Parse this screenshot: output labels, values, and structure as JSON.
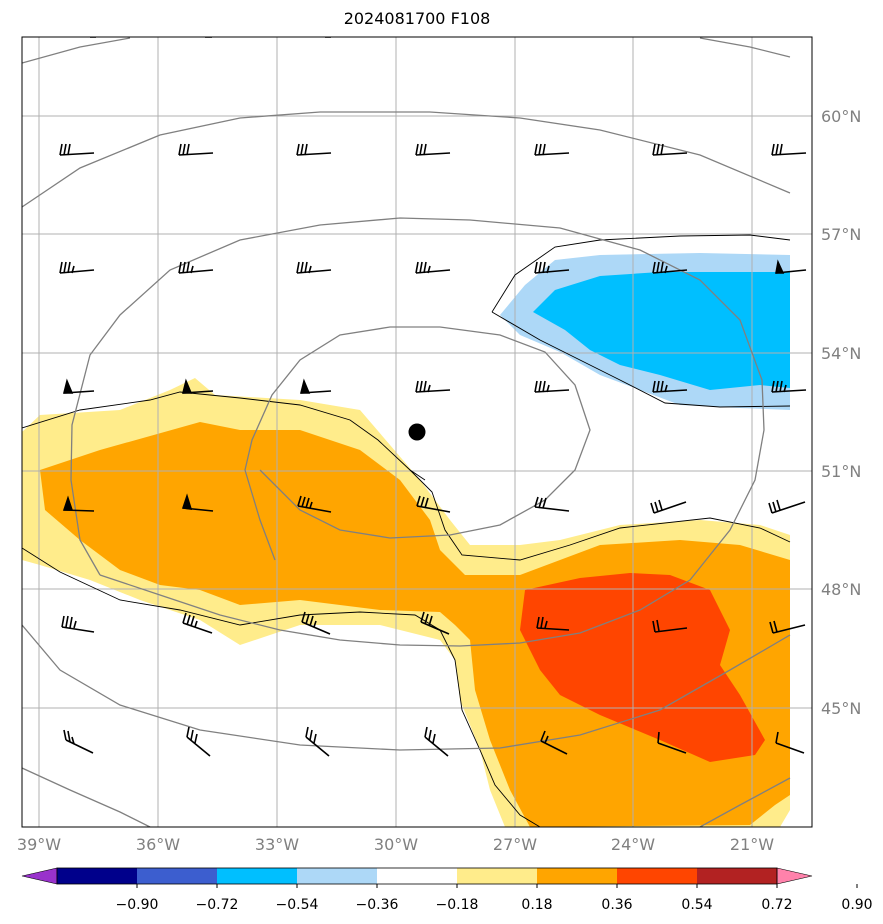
{
  "title": "2024081700 F108",
  "lon_labels": [
    "39°W",
    "36°W",
    "33°W",
    "30°W",
    "27°W",
    "24°W",
    "21°W"
  ],
  "lat_labels": [
    "60°N",
    "57°N",
    "54°N",
    "51°N",
    "48°N",
    "45°N"
  ],
  "colorbar": {
    "levels": [
      "−0.90",
      "−0.72",
      "−0.54",
      "−0.36",
      "−0.18",
      "0.18",
      "0.36",
      "0.54",
      "0.72",
      "0.90"
    ],
    "colors": [
      "#9932cc",
      "#00008b",
      "#3c5ecf",
      "#00bfff",
      "#add8f7",
      "#ffffff",
      "#ffec8b",
      "#ffa500",
      "#ff4500",
      "#b22222",
      "#ff82ab"
    ]
  },
  "fill_colors": {
    "light_yellow": "#ffec8b",
    "orange": "#ffa500",
    "red_orange": "#ff4500",
    "light_blue": "#add8f7",
    "deep_sky_blue": "#00bfff"
  },
  "contour_color": "#808080",
  "grid_color": "#b0b0b0",
  "marker": "center-dot"
}
